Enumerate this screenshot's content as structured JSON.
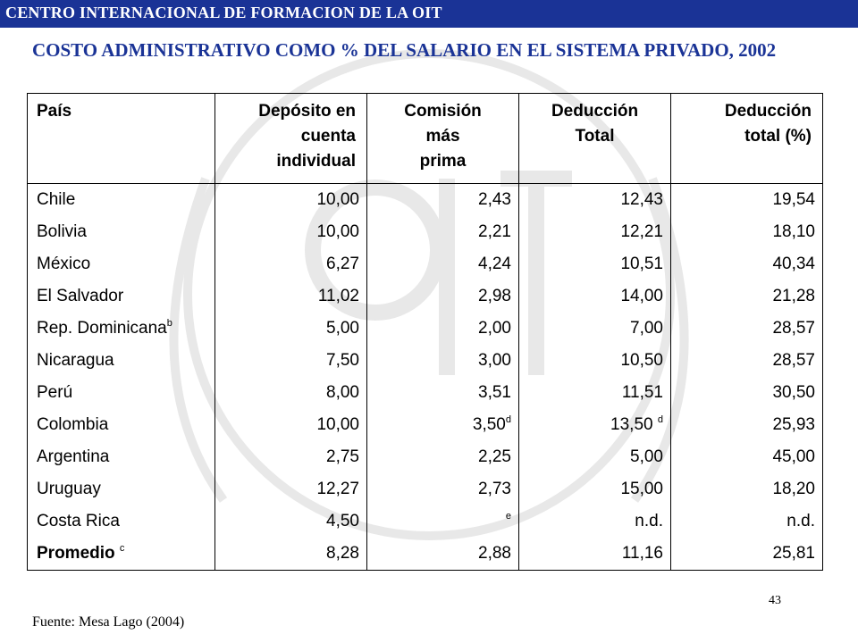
{
  "header": {
    "org_name": "CENTRO INTERNACIONAL  DE FORMACION DE LA OIT"
  },
  "title": "COSTO ADMINISTRATIVO COMO % DEL SALARIO EN EL SISTEMA PRIVADO, 2002",
  "colors": {
    "header_bg": "#1a3396",
    "title": "#1a3396",
    "watermark": "#e8e8e8"
  },
  "table": {
    "headers": [
      [
        "País"
      ],
      [
        "Depósito en",
        "cuenta",
        "individual"
      ],
      [
        "Comisión",
        "más",
        "prima"
      ],
      [
        "Deducción",
        "Total"
      ],
      [
        "Deducción",
        "total (%)"
      ]
    ],
    "rows": [
      {
        "country": "Chile",
        "country_sup": "",
        "deposit": "10,00",
        "commission": "2,43",
        "commission_sup": "",
        "total": "12,43",
        "total_sup": "",
        "pct": "19,54"
      },
      {
        "country": "Bolivia",
        "country_sup": "",
        "deposit": "10,00",
        "commission": "2,21",
        "commission_sup": "",
        "total": "12,21",
        "total_sup": "",
        "pct": "18,10"
      },
      {
        "country": "México",
        "country_sup": "",
        "deposit": "6,27",
        "commission": "4,24",
        "commission_sup": "",
        "total": "10,51",
        "total_sup": "",
        "pct": "40,34"
      },
      {
        "country": "El Salvador",
        "country_sup": "",
        "deposit": "11,02",
        "commission": "2,98",
        "commission_sup": "",
        "total": "14,00",
        "total_sup": "",
        "pct": "21,28"
      },
      {
        "country": "Rep. Dominicana",
        "country_sup": "b",
        "deposit": "5,00",
        "commission": "2,00",
        "commission_sup": "",
        "total": "7,00",
        "total_sup": "",
        "pct": "28,57"
      },
      {
        "country": "Nicaragua",
        "country_sup": "",
        "deposit": "7,50",
        "commission": "3,00",
        "commission_sup": "",
        "total": "10,50",
        "total_sup": "",
        "pct": "28,57"
      },
      {
        "country": "Perú",
        "country_sup": "",
        "deposit": "8,00",
        "commission": "3,51",
        "commission_sup": "",
        "total": "11,51",
        "total_sup": "",
        "pct": "30,50"
      },
      {
        "country": "Colombia",
        "country_sup": "",
        "deposit": "10,00",
        "commission": "3,50",
        "commission_sup": "d",
        "total": "13,50 ",
        "total_sup": "d",
        "pct": "25,93"
      },
      {
        "country": "Argentina",
        "country_sup": "",
        "deposit": "2,75",
        "commission": "2,25",
        "commission_sup": "",
        "total": "5,00",
        "total_sup": "",
        "pct": "45,00"
      },
      {
        "country": "Uruguay",
        "country_sup": "",
        "deposit": "12,27",
        "commission": "2,73",
        "commission_sup": "",
        "total": "15,00",
        "total_sup": "",
        "pct": "18,20"
      },
      {
        "country": "Costa Rica",
        "country_sup": "",
        "deposit": "4,50",
        "commission": "",
        "commission_sup": "e",
        "total": "n.d.",
        "total_sup": "",
        "pct": "n.d."
      },
      {
        "country": "Promedio ",
        "country_sup": "c",
        "deposit": "8,28",
        "commission": "2,88",
        "commission_sup": "",
        "total": "11,16",
        "total_sup": "",
        "pct": "25,81"
      }
    ]
  },
  "page_number": "43",
  "source": "Fuente: Mesa Lago (2004)"
}
